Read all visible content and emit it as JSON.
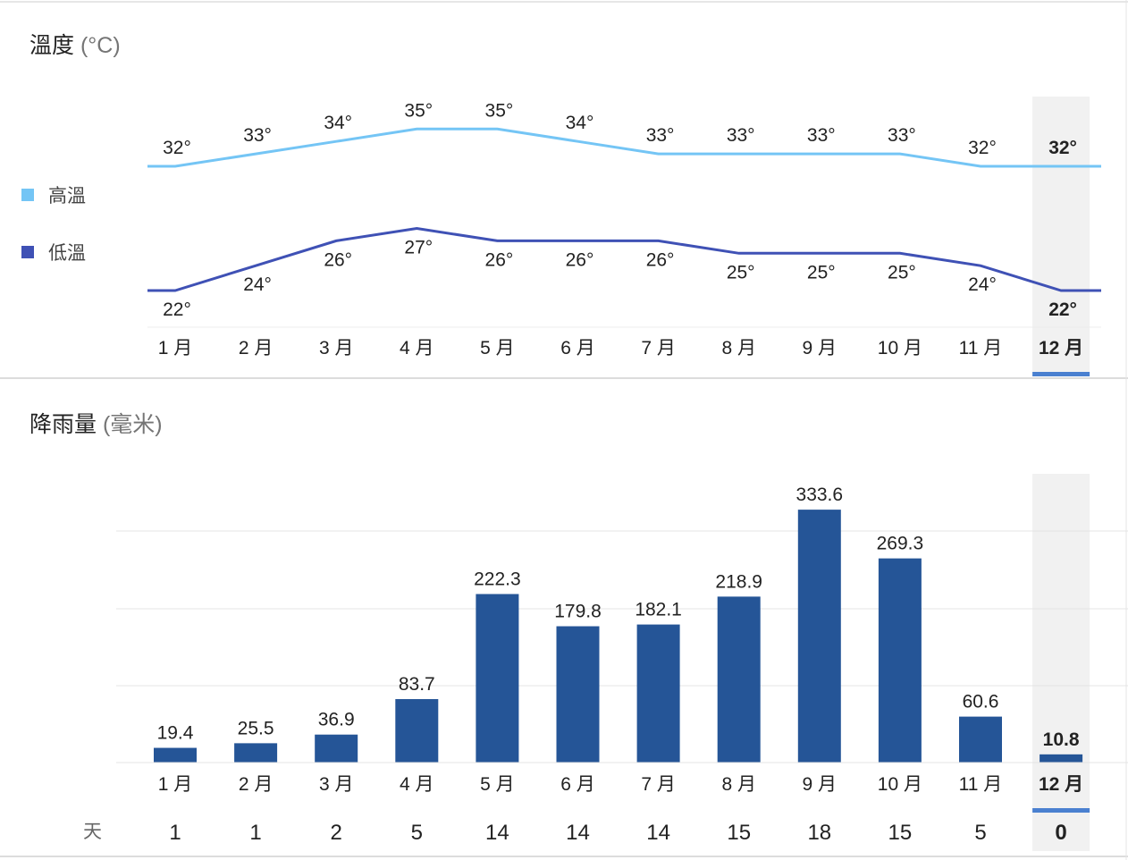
{
  "temperature": {
    "title": "溫度",
    "unit": "(°C)",
    "legend": [
      {
        "label": "高溫",
        "color": "#74c5f5"
      },
      {
        "label": "低溫",
        "color": "#3f51b5"
      }
    ]
  },
  "rainfall": {
    "title": "降雨量",
    "unit": "(毫米)",
    "days_label": "天"
  },
  "colors": {
    "high": "#74c5f5",
    "low": "#3f51b5",
    "bar": "#255597",
    "highlight_bg": "#f1f1f1",
    "highlight_bar": "#4a80d0"
  },
  "chart_data": [
    {
      "type": "line",
      "title": "溫度 (°C)",
      "categories": [
        "1 月",
        "2 月",
        "3 月",
        "4 月",
        "5 月",
        "6 月",
        "7 月",
        "8 月",
        "9 月",
        "10 月",
        "11 月",
        "12 月"
      ],
      "series": [
        {
          "name": "高溫",
          "values": [
            32,
            33,
            34,
            35,
            35,
            34,
            33,
            33,
            33,
            33,
            32,
            32
          ]
        },
        {
          "name": "低溫",
          "values": [
            22,
            24,
            26,
            27,
            26,
            26,
            26,
            25,
            25,
            25,
            24,
            22
          ]
        }
      ],
      "label_suffix": "°",
      "highlighted_index": 11,
      "legend": "left"
    },
    {
      "type": "bar",
      "title": "降雨量 (毫米)",
      "categories": [
        "1 月",
        "2 月",
        "3 月",
        "4 月",
        "5 月",
        "6 月",
        "7 月",
        "8 月",
        "9 月",
        "10 月",
        "11 月",
        "12 月"
      ],
      "values": [
        19.4,
        25.5,
        36.9,
        83.7,
        222.3,
        179.8,
        182.1,
        218.9,
        333.6,
        269.3,
        60.6,
        10.8
      ],
      "value_labels": [
        "19.4",
        "25.5",
        "36.9",
        "83.7",
        "222.3",
        "179.8",
        "182.1",
        "218.9",
        "333.6",
        "269.3",
        "60.6",
        "10.8"
      ],
      "days": [
        1,
        1,
        2,
        5,
        14,
        14,
        14,
        15,
        18,
        15,
        5,
        0
      ],
      "highlighted_index": 11,
      "grid": true
    }
  ]
}
